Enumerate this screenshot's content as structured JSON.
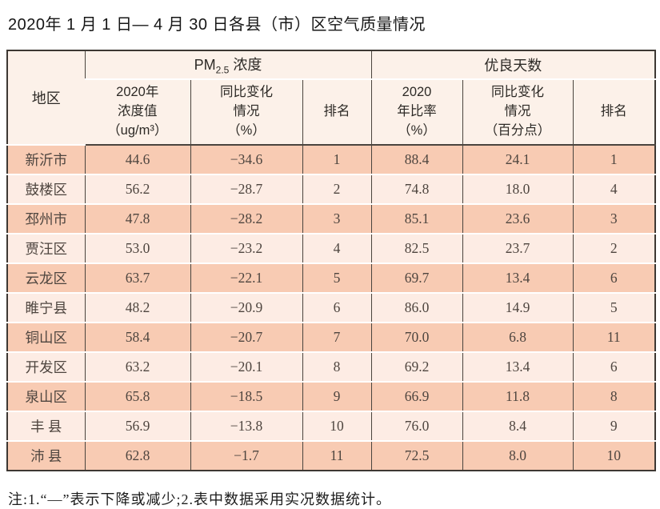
{
  "title": "2020年 1 月 1 日— 4 月 30 日各县（市）区空气质量情况",
  "note": "注:1.“—”表示下降或减少;2.表中数据采用实况数据统计。",
  "colors": {
    "row_odd": "#f8cbb3",
    "row_even": "#fdece4",
    "header_bg": "#fcf1e9",
    "border_outer": "#3d3833",
    "border_inner": "#4a443e",
    "body_text": "#4e453f",
    "header_text": "#2d2a26",
    "title_text": "#161616",
    "note_text": "#1c1c1c"
  },
  "table": {
    "region_header": "地区",
    "groups": {
      "pm25": {
        "prefix": "PM",
        "sub": "2.5",
        "suffix": " 浓度"
      },
      "good_days": {
        "label": "优良天数"
      }
    },
    "sub_headers": {
      "pm_value": "2020年\n浓度值\n（ug/m³）",
      "pm_change": "同比变化\n情况\n（%）",
      "pm_rank": "排名",
      "days_ratio": "2020\n年比率\n（%）",
      "days_change": "同比变化\n情况\n（百分点）",
      "days_rank": "排名"
    },
    "rows": [
      [
        "新沂市",
        "44.6",
        "−34.6",
        "1",
        "88.4",
        "24.1",
        "1"
      ],
      [
        "鼓楼区",
        "56.2",
        "−28.7",
        "2",
        "74.8",
        "18.0",
        "4"
      ],
      [
        "邳州市",
        "47.8",
        "−28.2",
        "3",
        "85.1",
        "23.6",
        "3"
      ],
      [
        "贾汪区",
        "53.0",
        "−23.2",
        "4",
        "82.5",
        "23.7",
        "2"
      ],
      [
        "云龙区",
        "63.7",
        "−22.1",
        "5",
        "69.7",
        "13.4",
        "6"
      ],
      [
        "睢宁县",
        "48.2",
        "−20.9",
        "6",
        "86.0",
        "14.9",
        "5"
      ],
      [
        "铜山区",
        "58.4",
        "−20.7",
        "7",
        "70.0",
        "6.8",
        "11"
      ],
      [
        "开发区",
        "63.2",
        "−20.1",
        "8",
        "69.2",
        "13.4",
        "6"
      ],
      [
        "泉山区",
        "65.8",
        "−18.5",
        "9",
        "66.9",
        "11.8",
        "8"
      ],
      [
        "丰 县",
        "56.9",
        "−13.8",
        "10",
        "76.0",
        "8.4",
        "9"
      ],
      [
        "沛 县",
        "62.8",
        "−1.7",
        "11",
        "72.5",
        "8.0",
        "10"
      ]
    ]
  }
}
